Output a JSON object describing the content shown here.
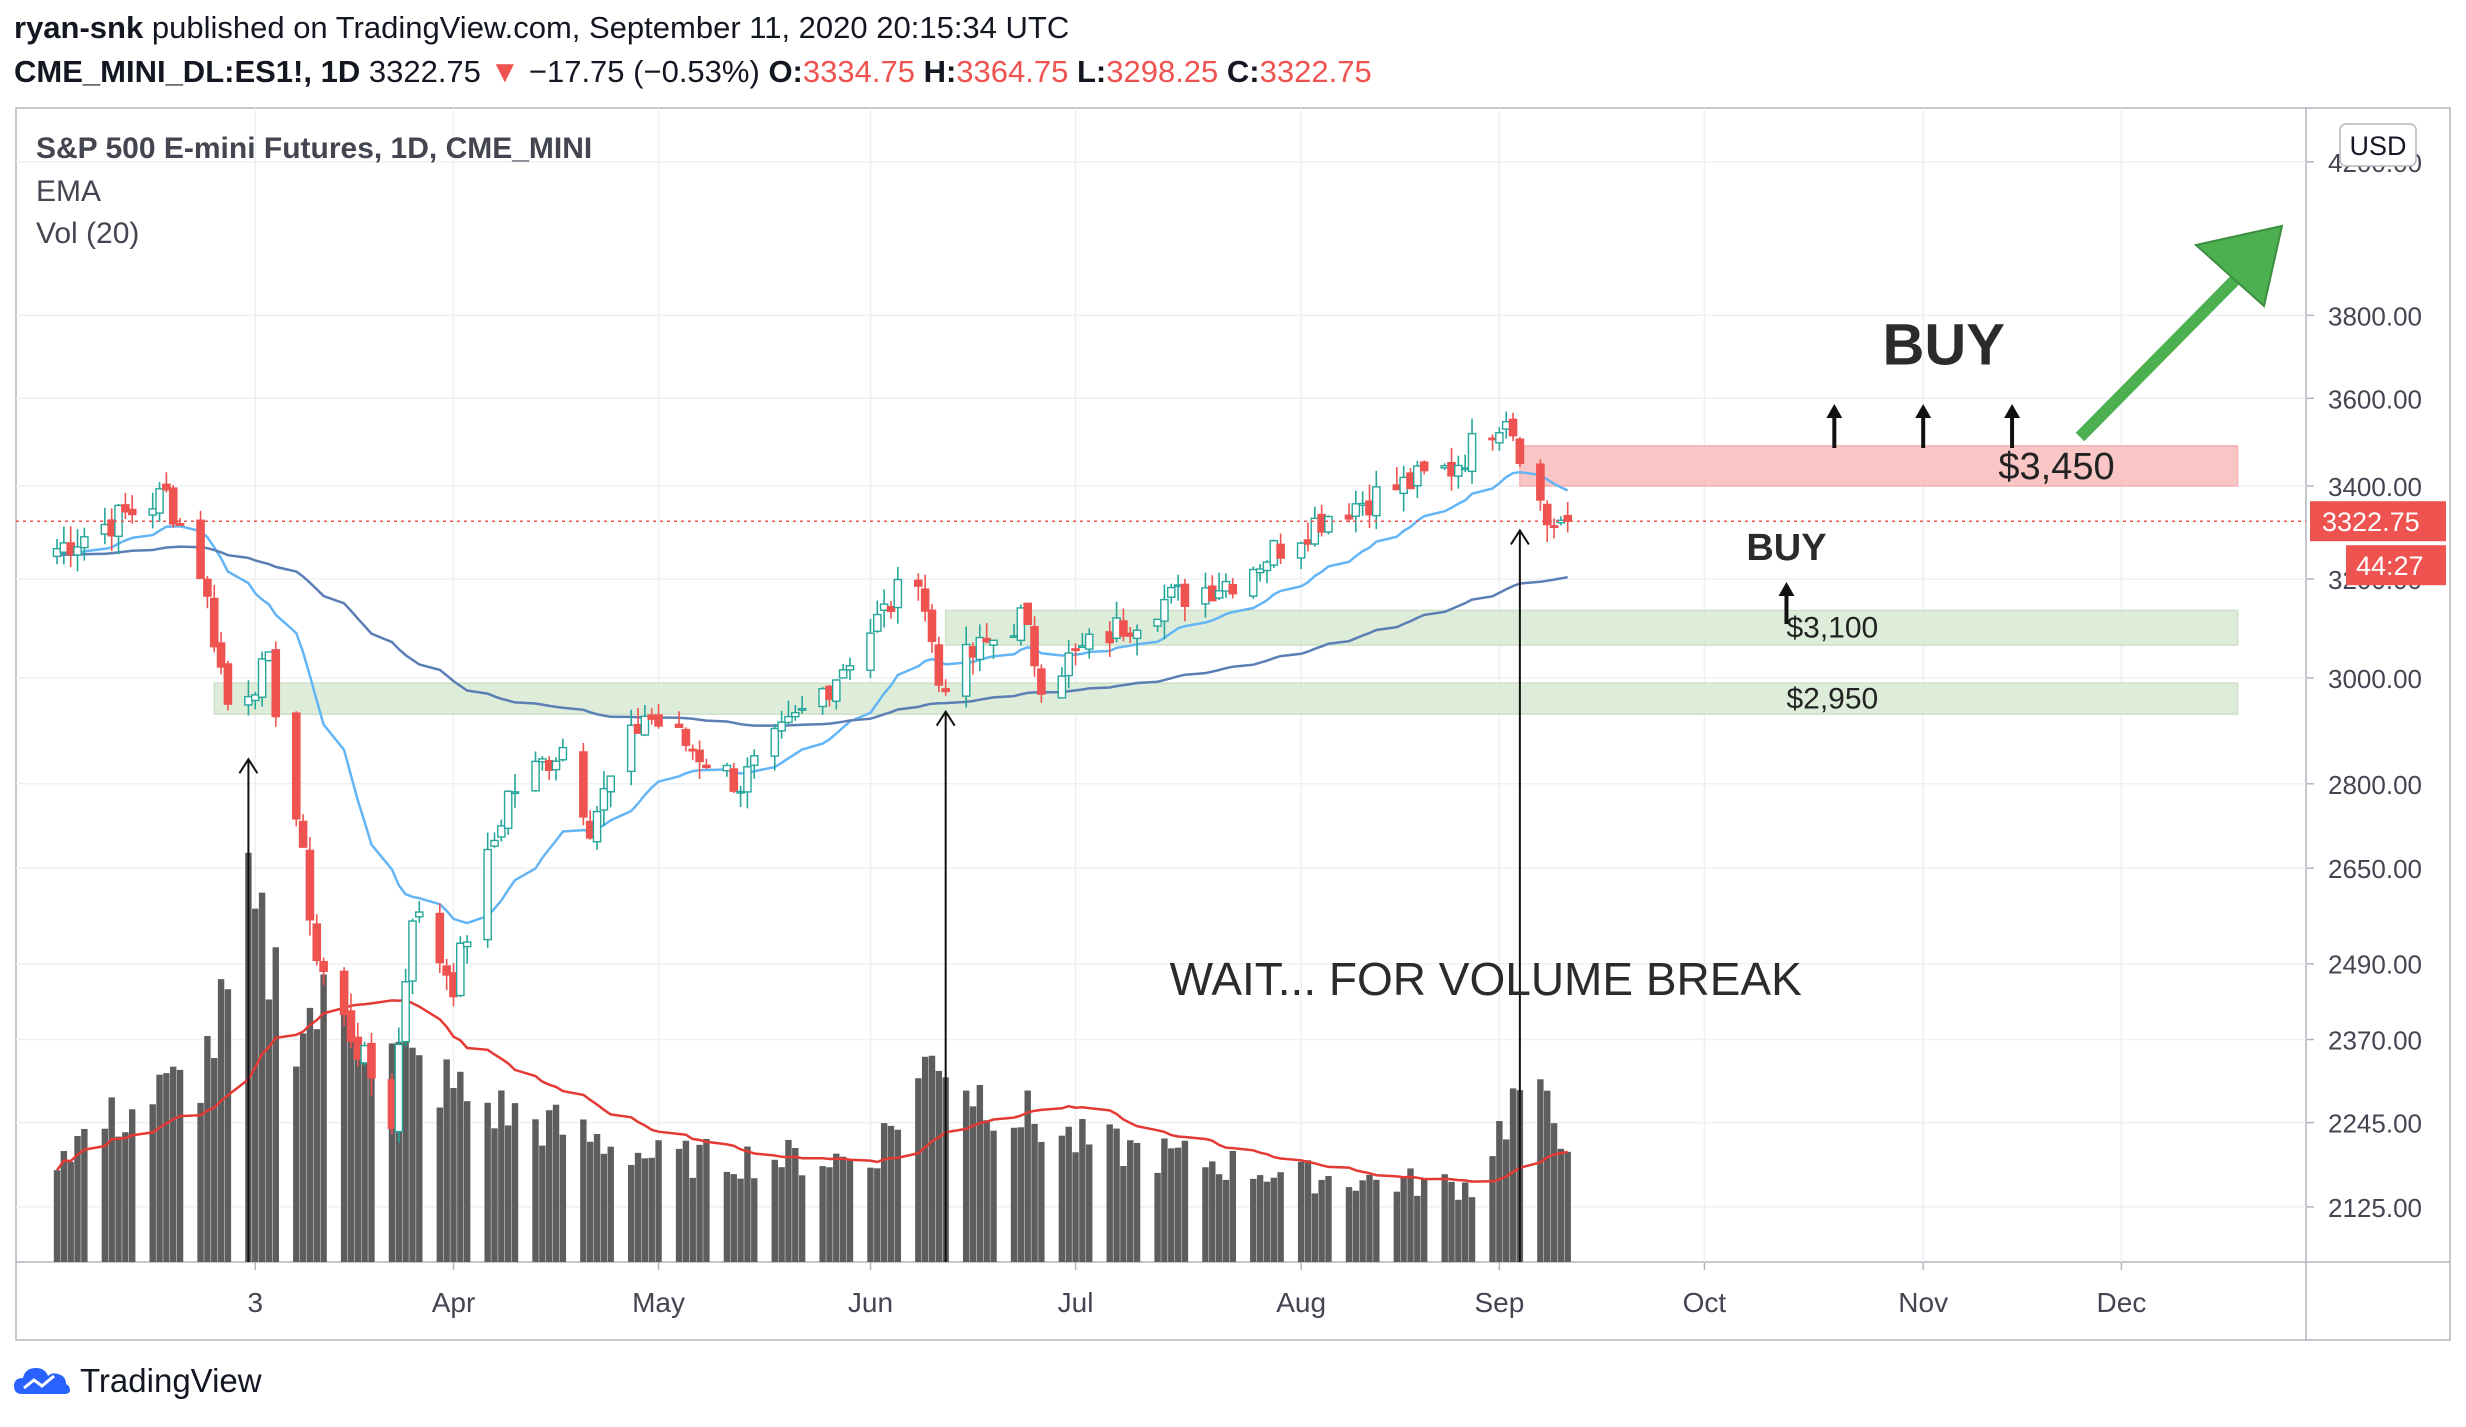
{
  "header": {
    "author": "ryan-snk",
    "published": "published on TradingView.com, September 11, 2020 20:15:34 UTC",
    "symbol": "CME_MINI_DL:ES1!, 1D",
    "last": "3322.75",
    "change_arrow": "▼",
    "change": "−17.75 (−0.53%)",
    "o_label": "O:",
    "o": "3334.75",
    "h_label": "H:",
    "h": "3364.75",
    "l_label": "L:",
    "l": "3298.25",
    "c_label": "C:",
    "c": "3322.75"
  },
  "legend": {
    "title": "S&P 500 E-mini Futures, 1D, CME_MINI",
    "ema": "EMA",
    "vol": "Vol (20)"
  },
  "footer": {
    "brand": "TradingView"
  },
  "colors": {
    "up": "#26a69a",
    "down": "#ef5350",
    "ema_fast": "#64b5f6",
    "ema_slow": "#5b7fb5",
    "volume": "#5d5d5d",
    "vol_ma": "#e53935",
    "buy_zone": "#f8bcbc",
    "support_zone": "#d9ead3",
    "arrow": "#4caf50",
    "grid": "#eef0f3",
    "axis_text": "#434651"
  },
  "chart_data": {
    "type": "candlestick",
    "currency": "USD",
    "y_scale": "log",
    "ylim": [
      2050,
      4350
    ],
    "y_ticks": [
      2125,
      2245,
      2370,
      2490,
      2650,
      2800,
      3000,
      3200,
      3400,
      3600,
      3800,
      4200
    ],
    "y_tick_labels": [
      "2125.00",
      "2245.00",
      "2370.00",
      "2490.00",
      "2650.00",
      "2800.00",
      "3000.00",
      "3200.00",
      "3400.00",
      "3600.00",
      "3800.00",
      "4200.00"
    ],
    "x_ticks": [
      "3",
      "Apr",
      "May",
      "Jun",
      "Jul",
      "Aug",
      "Sep",
      "Oct",
      "Nov",
      "Dec"
    ],
    "x_tick_dates": [
      "2020-03-03",
      "2020-04-01",
      "2020-05-01",
      "2020-06-01",
      "2020-07-01",
      "2020-08-03",
      "2020-09-01",
      "2020-10-01",
      "2020-11-02",
      "2020-12-01"
    ],
    "last_price_label": "3322.75",
    "countdown_label": "44:27",
    "keypoints": [
      {
        "date": "2020-02-01",
        "close": 3250
      },
      {
        "date": "2020-02-19",
        "close": 3380
      },
      {
        "date": "2020-02-24",
        "close": 3220
      },
      {
        "date": "2020-02-28",
        "close": 2950
      },
      {
        "date": "2020-03-05",
        "close": 3020
      },
      {
        "date": "2020-03-09",
        "close": 2740
      },
      {
        "date": "2020-03-12",
        "close": 2500
      },
      {
        "date": "2020-03-16",
        "close": 2400
      },
      {
        "date": "2020-03-23",
        "close": 2250
      },
      {
        "date": "2020-03-26",
        "close": 2580
      },
      {
        "date": "2020-04-01",
        "close": 2460
      },
      {
        "date": "2020-04-09",
        "close": 2780
      },
      {
        "date": "2020-04-17",
        "close": 2870
      },
      {
        "date": "2020-04-21",
        "close": 2730
      },
      {
        "date": "2020-04-29",
        "close": 2930
      },
      {
        "date": "2020-05-13",
        "close": 2800
      },
      {
        "date": "2020-05-26",
        "close": 2990
      },
      {
        "date": "2020-06-08",
        "close": 3220
      },
      {
        "date": "2020-06-11",
        "close": 2990
      },
      {
        "date": "2020-06-23",
        "close": 3120
      },
      {
        "date": "2020-06-26",
        "close": 3000
      },
      {
        "date": "2020-07-13",
        "close": 3150
      },
      {
        "date": "2020-07-24",
        "close": 3200
      },
      {
        "date": "2020-08-07",
        "close": 3340
      },
      {
        "date": "2020-08-25",
        "close": 3440
      },
      {
        "date": "2020-09-02",
        "close": 3570
      },
      {
        "date": "2020-09-08",
        "close": 3320
      },
      {
        "date": "2020-09-11",
        "close": 3322.75
      }
    ],
    "ohlc_last": {
      "date": "2020-09-11",
      "open": 3334.75,
      "high": 3364.75,
      "low": 3298.25,
      "close": 3322.75
    },
    "volume_keypoints": [
      {
        "date": "2020-02-01",
        "volume": 0.3
      },
      {
        "date": "2020-02-24",
        "volume": 0.55
      },
      {
        "date": "2020-02-28",
        "volume": 0.75
      },
      {
        "date": "2020-03-02",
        "volume": 1.0
      },
      {
        "date": "2020-03-09",
        "volume": 0.7
      },
      {
        "date": "2020-03-16",
        "volume": 0.75
      },
      {
        "date": "2020-03-23",
        "volume": 0.6
      },
      {
        "date": "2020-04-06",
        "volume": 0.45
      },
      {
        "date": "2020-05-01",
        "volume": 0.3
      },
      {
        "date": "2020-06-01",
        "volume": 0.3
      },
      {
        "date": "2020-06-11",
        "volume": 0.62
      },
      {
        "date": "2020-06-16",
        "volume": 0.5
      },
      {
        "date": "2020-07-01",
        "volume": 0.35
      },
      {
        "date": "2020-08-03",
        "volume": 0.25
      },
      {
        "date": "2020-08-28",
        "volume": 0.22
      },
      {
        "date": "2020-09-04",
        "volume": 0.5
      },
      {
        "date": "2020-09-11",
        "volume": 0.38
      }
    ],
    "zones": [
      {
        "label": "$3,450",
        "low": 3400,
        "high": 3490,
        "start": "2020-09-04",
        "end": "2020-12-18",
        "kind": "resistance"
      },
      {
        "label": "$3,100",
        "low": 3065,
        "high": 3135,
        "start": "2020-06-12",
        "end": "2020-12-18",
        "kind": "support"
      },
      {
        "label": "$2,950",
        "low": 2930,
        "high": 2990,
        "start": "2020-02-26",
        "end": "2020-12-18",
        "kind": "support"
      }
    ],
    "annotations": [
      {
        "text": "BUY",
        "date": "2020-11-05",
        "price": 3680,
        "size": "large"
      },
      {
        "text": "BUY",
        "date": "2020-10-13",
        "price": 3240,
        "size": "medium"
      },
      {
        "text": "WAIT...     FOR VOLUME BREAK",
        "date": "2020-08-30",
        "price": 2440,
        "size": "medium"
      }
    ]
  }
}
